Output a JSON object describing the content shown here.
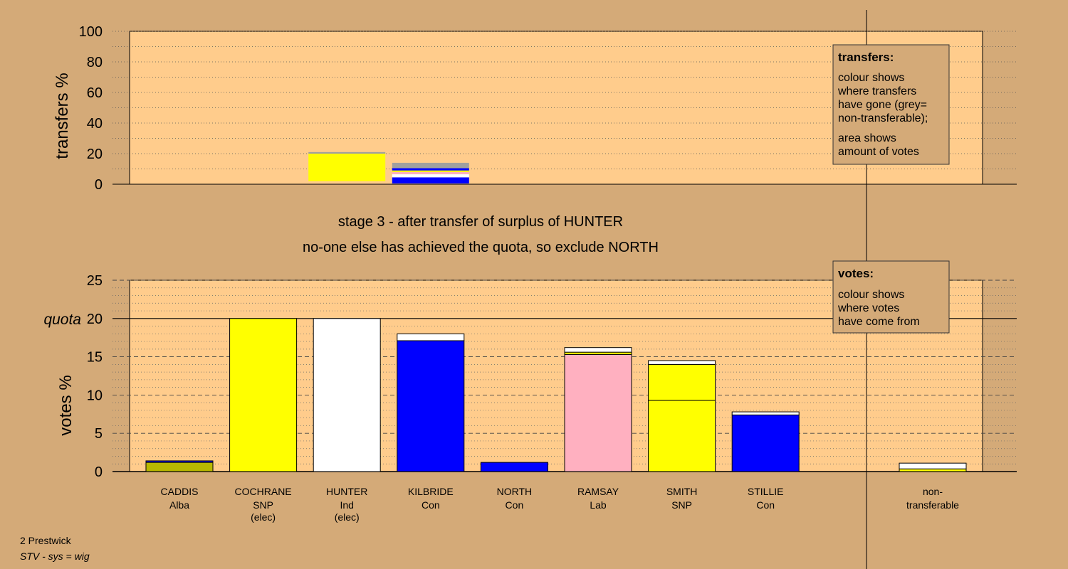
{
  "footer": {
    "line1": "2 Prestwick",
    "line2": "STV - sys = wig"
  },
  "captions": {
    "stage": "stage 3 - after transfer of surplus of HUNTER",
    "action": "no-one else has achieved the quota, so exclude NORTH"
  },
  "legends": {
    "transfers_title": "transfers:",
    "transfers_lines1": [
      "colour shows",
      "where transfers",
      "have gone (grey=",
      "non-transferable);"
    ],
    "transfers_lines2": [
      "area shows",
      "amount of votes"
    ],
    "votes_title": "votes:",
    "votes_lines": [
      "colour shows",
      "where votes",
      "have come from"
    ]
  },
  "colors": {
    "background": "#d4aa78",
    "plot_area": "#ffcc8c",
    "Alba": "#b8b800",
    "SNP": "#ffff00",
    "Ind": "#ffffff",
    "Con": "#0000ff",
    "Lab": "#ffb0c0",
    "non_transferable": "#a0a0a0"
  },
  "chart_data": [
    {
      "type": "bar",
      "ylabel": "transfers %",
      "ylim": [
        0,
        100
      ],
      "yticks": [
        0,
        20,
        40,
        60,
        80,
        100
      ],
      "grid": "dotted",
      "bars": [
        {
          "position": 2,
          "segments": [
            {
              "source": "SNP",
              "from": 2,
              "to": 20
            },
            {
              "source": "non-transferable",
              "from": 20,
              "to": 21
            }
          ]
        },
        {
          "position": 3,
          "segments": [
            {
              "source": "Con",
              "from": 0.5,
              "to": 4.5
            },
            {
              "source": "Ind",
              "from": 4.5,
              "to": 6.5
            },
            {
              "source": "Lab",
              "from": 6.5,
              "to": 8
            },
            {
              "source": "SNP",
              "from": 8,
              "to": 9
            },
            {
              "source": "Con",
              "from": 9,
              "to": 10.5
            },
            {
              "source": "non-transferable",
              "from": 10.5,
              "to": 14
            }
          ]
        }
      ]
    },
    {
      "type": "bar",
      "ylabel": "votes %",
      "ylim": [
        0,
        25
      ],
      "yticks": [
        0,
        5,
        10,
        15,
        20,
        25
      ],
      "quota_label": "quota",
      "quota": 20,
      "grid": "dashed",
      "candidates": [
        {
          "name": "CADDIS",
          "party": "Alba",
          "note": "",
          "segments": [
            {
              "source": "Alba",
              "value": 1.2
            },
            {
              "source": "Con",
              "value": 0.2
            }
          ]
        },
        {
          "name": "COCHRANE",
          "party": "SNP",
          "note": "(elec)",
          "segments": [
            {
              "source": "SNP",
              "value": 20
            }
          ]
        },
        {
          "name": "HUNTER",
          "party": "Ind",
          "note": "(elec)",
          "segments": [
            {
              "source": "Ind",
              "value": 20
            }
          ]
        },
        {
          "name": "KILBRIDE",
          "party": "Con",
          "note": "",
          "segments": [
            {
              "source": "Con",
              "value": 17.1
            },
            {
              "source": "Ind",
              "value": 0.9
            }
          ]
        },
        {
          "name": "NORTH",
          "party": "Con",
          "note": "",
          "segments": [
            {
              "source": "Con",
              "value": 1.2
            }
          ]
        },
        {
          "name": "RAMSAY",
          "party": "Lab",
          "note": "",
          "segments": [
            {
              "source": "Lab",
              "value": 15.3
            },
            {
              "source": "SNP",
              "value": 0.3
            },
            {
              "source": "Ind",
              "value": 0.6
            }
          ]
        },
        {
          "name": "SMITH",
          "party": "SNP",
          "note": "",
          "segments": [
            {
              "source": "SNP",
              "value": 9.3
            },
            {
              "source": "SNP",
              "value": 4.7
            },
            {
              "source": "Ind",
              "value": 0.5
            }
          ]
        },
        {
          "name": "STILLIE",
          "party": "Con",
          "note": "",
          "segments": [
            {
              "source": "Con",
              "value": 7.4
            },
            {
              "source": "Ind",
              "value": 0.4
            }
          ]
        }
      ],
      "non_transferable": {
        "line1": "non-",
        "line2": "transferable",
        "segments": [
          {
            "source": "SNP",
            "value": 0.35
          },
          {
            "source": "Ind",
            "value": 0.75
          }
        ]
      }
    }
  ]
}
